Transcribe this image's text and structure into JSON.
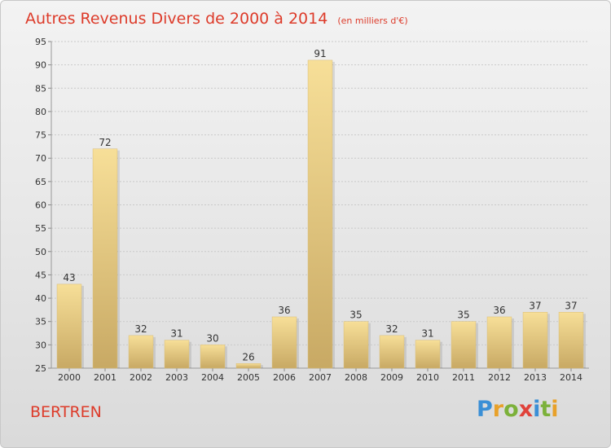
{
  "chart_data": {
    "type": "bar",
    "title": "Autres Revenus Divers de 2000 à 2014",
    "subtitle": "(en milliers d'€)",
    "categories": [
      "2000",
      "2001",
      "2002",
      "2003",
      "2004",
      "2005",
      "2006",
      "2007",
      "2008",
      "2009",
      "2010",
      "2011",
      "2012",
      "2013",
      "2014"
    ],
    "values": [
      43,
      72,
      32,
      31,
      30,
      26,
      36,
      91,
      35,
      32,
      31,
      35,
      36,
      37,
      37
    ],
    "ylim": [
      25,
      95
    ],
    "yticks": [
      25,
      30,
      35,
      40,
      45,
      50,
      55,
      60,
      65,
      70,
      75,
      80,
      85,
      90,
      95
    ],
    "grid": true,
    "bar_color": "#e8cd86"
  },
  "footer": {
    "commune": "BERTREN",
    "brand_letters": [
      {
        "ch": "P",
        "color": "#3a8fd6"
      },
      {
        "ch": "r",
        "color": "#e8a12a"
      },
      {
        "ch": "o",
        "color": "#7cb13a"
      },
      {
        "ch": "x",
        "color": "#e0423a"
      },
      {
        "ch": "i",
        "color": "#3a8fd6"
      },
      {
        "ch": "t",
        "color": "#7cb13a"
      },
      {
        "ch": "i",
        "color": "#e8a12a"
      }
    ]
  }
}
